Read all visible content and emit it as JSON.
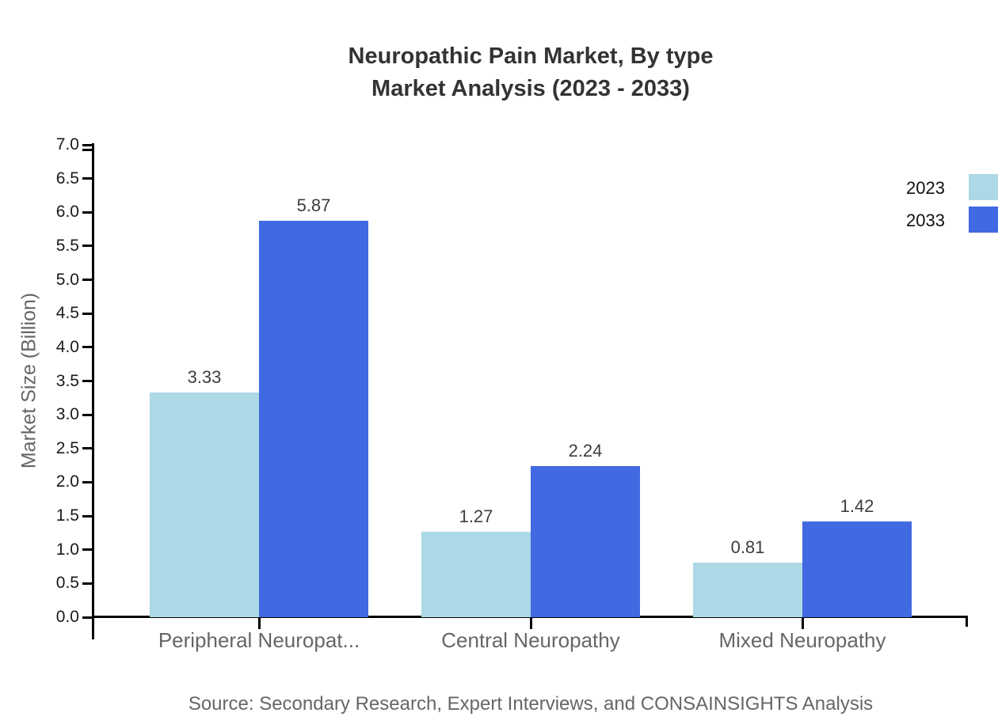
{
  "header": {
    "title_line1": "Neuropathic Pain Market, By type",
    "title_line2": "Market Analysis (2023 - 2033)"
  },
  "chart_data": {
    "type": "bar",
    "title": "Neuropathic Pain Market, By type - Market Analysis (2023 - 2033)",
    "categories": [
      "Peripheral Neuropat...",
      "Central Neuropathy",
      "Mixed Neuropathy"
    ],
    "series": [
      {
        "name": "2023",
        "color": "#ADD8E6",
        "values": [
          3.33,
          1.27,
          0.81
        ]
      },
      {
        "name": "2033",
        "color": "#4169E1",
        "values": [
          5.87,
          2.24,
          1.42
        ]
      }
    ],
    "ylabel": "Market Size (Billion)",
    "xlabel": "",
    "ylim": [
      0,
      7
    ],
    "ytick_step": 0.5,
    "ytick_format": "1dp",
    "value_label_format": "2dp",
    "grid": false,
    "legend_position": "upper-right"
  },
  "footer": {
    "source": "Source: Secondary Research, Expert Interviews, and CONSAINSIGHTS Analysis"
  },
  "colors": {
    "background": "#ffffff",
    "axis": "#000000",
    "title_text": "#333333",
    "tick_label_text": "#1a1a1a",
    "category_label_text": "#666666",
    "value_label_text": "#3d3d3d",
    "y_axis_title_text": "#666666",
    "source_text": "#666666",
    "legend_text": "#111111",
    "series_2023": "#ADD8E6",
    "series_2033": "#4169E1"
  }
}
